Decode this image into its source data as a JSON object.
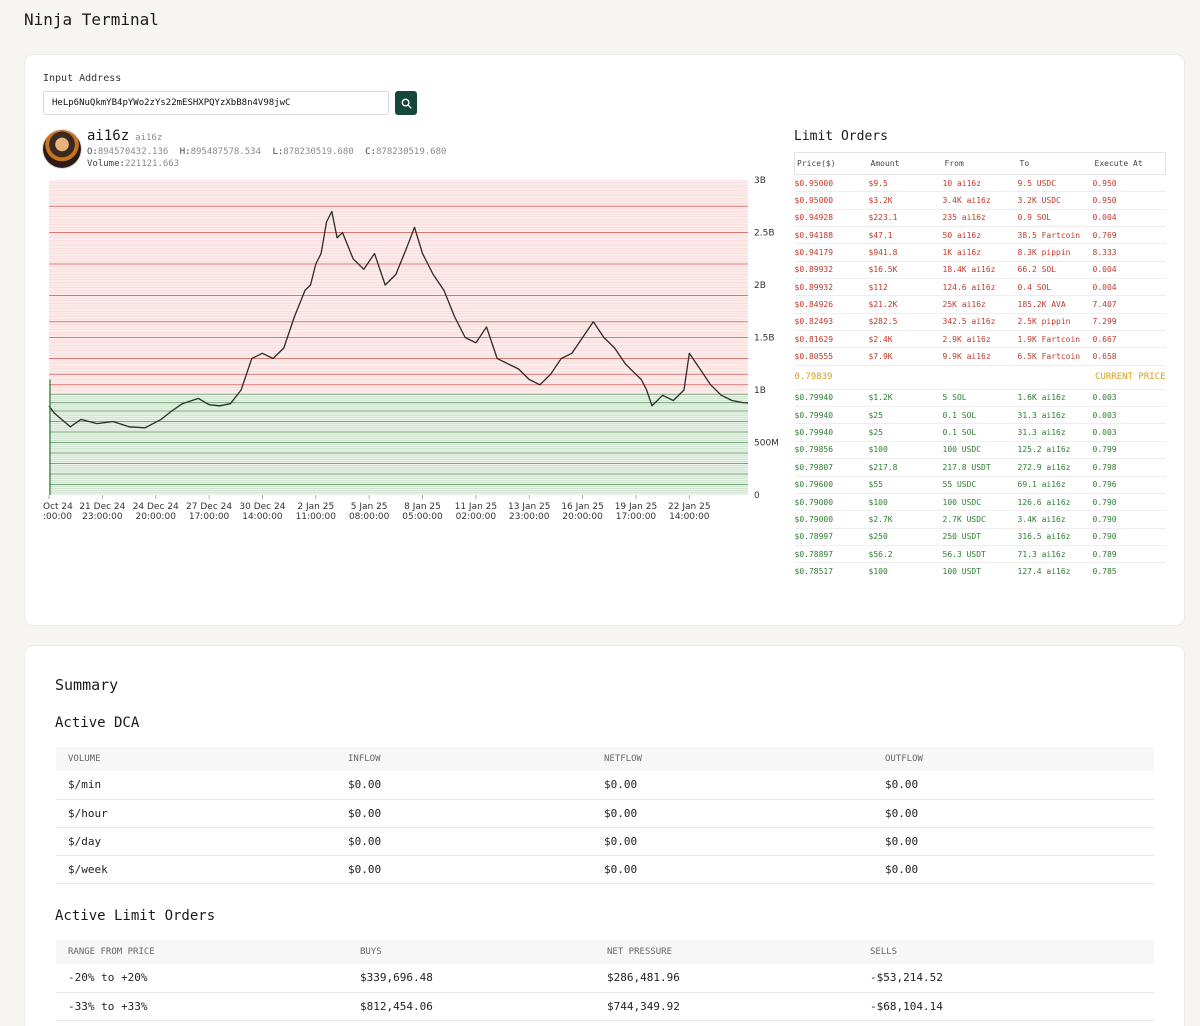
{
  "app": {
    "title": "Ninja Terminal"
  },
  "search": {
    "label": "Input Address",
    "value": "HeLp6NuQkmYB4pYWo2zYs22mESHXPQYzXbB8n4V98jwC",
    "button_icon": "search-icon"
  },
  "token": {
    "name": "ai16z",
    "ticker": "ai16z",
    "open_label": "O:",
    "open": "894570432.136",
    "high_label": "H:",
    "high": "895487578.534",
    "low_label": "L:",
    "low": "878230519.680",
    "close_label": "C:",
    "close": "878230519.680",
    "volume_label": "Volume:",
    "volume": "221121.663"
  },
  "chart_data": {
    "type": "line",
    "title": "",
    "y_ticks": [
      "3B",
      "2.5B",
      "2B",
      "1.5B",
      "1B",
      "500M",
      "0"
    ],
    "y_tick_values": [
      3000000000,
      2500000000,
      2000000000,
      1500000000,
      1000000000,
      500000000,
      0
    ],
    "ylim": [
      0,
      3000000000
    ],
    "x_tick_labels": [
      [
        "Oct 24",
        ":00:00"
      ],
      [
        "21 Dec 24",
        "23:00:00"
      ],
      [
        "24 Dec 24",
        "20:00:00"
      ],
      [
        "27 Dec 24",
        "17:00:00"
      ],
      [
        "30 Dec 24",
        "14:00:00"
      ],
      [
        "2 Jan 25",
        "11:00:00"
      ],
      [
        "5 Jan 25",
        "08:00:00"
      ],
      [
        "8 Jan 25",
        "05:00:00"
      ],
      [
        "11 Jan 25",
        "02:00:00"
      ],
      [
        "13 Jan 25",
        "23:00:00"
      ],
      [
        "16 Jan 25",
        "20:00:00"
      ],
      [
        "19 Jan 25",
        "17:00:00"
      ],
      [
        "22 Jan 25",
        "14:00:00"
      ]
    ],
    "x_tick_index": [
      0,
      1,
      2,
      3,
      4,
      5,
      6,
      7,
      8,
      9,
      10,
      11,
      12
    ],
    "x_count": 13.1,
    "price_series": [
      [
        0,
        850000000
      ],
      [
        0.1,
        780000000
      ],
      [
        0.4,
        650000000
      ],
      [
        0.6,
        720000000
      ],
      [
        0.9,
        680000000
      ],
      [
        1.2,
        700000000
      ],
      [
        1.5,
        650000000
      ],
      [
        1.8,
        640000000
      ],
      [
        2.1,
        720000000
      ],
      [
        2.3,
        800000000
      ],
      [
        2.5,
        870000000
      ],
      [
        2.8,
        920000000
      ],
      [
        3.0,
        860000000
      ],
      [
        3.2,
        850000000
      ],
      [
        3.4,
        870000000
      ],
      [
        3.6,
        1000000000
      ],
      [
        3.8,
        1300000000
      ],
      [
        4.0,
        1350000000
      ],
      [
        4.2,
        1300000000
      ],
      [
        4.4,
        1400000000
      ],
      [
        4.6,
        1700000000
      ],
      [
        4.8,
        1950000000
      ],
      [
        4.9,
        2000000000
      ],
      [
        5.0,
        2200000000
      ],
      [
        5.1,
        2300000000
      ],
      [
        5.2,
        2600000000
      ],
      [
        5.3,
        2700000000
      ],
      [
        5.4,
        2450000000
      ],
      [
        5.5,
        2500000000
      ],
      [
        5.7,
        2250000000
      ],
      [
        5.9,
        2150000000
      ],
      [
        6.1,
        2300000000
      ],
      [
        6.3,
        2000000000
      ],
      [
        6.5,
        2100000000
      ],
      [
        6.7,
        2350000000
      ],
      [
        6.85,
        2550000000
      ],
      [
        7.0,
        2300000000
      ],
      [
        7.2,
        2100000000
      ],
      [
        7.4,
        1950000000
      ],
      [
        7.6,
        1700000000
      ],
      [
        7.8,
        1500000000
      ],
      [
        8.0,
        1450000000
      ],
      [
        8.2,
        1600000000
      ],
      [
        8.4,
        1300000000
      ],
      [
        8.6,
        1250000000
      ],
      [
        8.8,
        1200000000
      ],
      [
        9.0,
        1100000000
      ],
      [
        9.2,
        1050000000
      ],
      [
        9.4,
        1150000000
      ],
      [
        9.6,
        1300000000
      ],
      [
        9.8,
        1350000000
      ],
      [
        10.0,
        1500000000
      ],
      [
        10.2,
        1650000000
      ],
      [
        10.4,
        1500000000
      ],
      [
        10.6,
        1400000000
      ],
      [
        10.8,
        1250000000
      ],
      [
        11.0,
        1150000000
      ],
      [
        11.1,
        1100000000
      ],
      [
        11.2,
        1000000000
      ],
      [
        11.3,
        850000000
      ],
      [
        11.5,
        950000000
      ],
      [
        11.7,
        900000000
      ],
      [
        11.9,
        1000000000
      ],
      [
        12.0,
        1350000000
      ],
      [
        12.2,
        1200000000
      ],
      [
        12.4,
        1050000000
      ],
      [
        12.6,
        950000000
      ],
      [
        12.8,
        900000000
      ],
      [
        13.0,
        880000000
      ],
      [
        13.1,
        878230519
      ]
    ],
    "sell_order_levels": [
      2750000000,
      2500000000,
      2200000000,
      1900000000,
      1650000000,
      1500000000,
      1300000000,
      1150000000,
      1050000000
    ],
    "buy_order_levels": [
      960000000,
      880000000,
      800000000,
      700000000,
      600000000,
      500000000,
      400000000,
      300000000,
      200000000,
      100000000
    ],
    "sell_color": "#d9463b",
    "buy_color": "#2e7d32"
  },
  "limit_orders": {
    "title": "Limit Orders",
    "headers": [
      "Price($)",
      "Amount",
      "From",
      "To",
      "Execute At"
    ],
    "sells": [
      [
        "$0.95000",
        "$9.5",
        "10 ai16z",
        "9.5 USDC",
        "0.950"
      ],
      [
        "$0.95000",
        "$3.2K",
        "3.4K ai16z",
        "3.2K USDC",
        "0.950"
      ],
      [
        "$0.94928",
        "$223.1",
        "235 ai16z",
        "0.9 SOL",
        "0.004"
      ],
      [
        "$0.94188",
        "$47.1",
        "50 ai16z",
        "38.5 Fartcoin",
        "0.769"
      ],
      [
        "$0.94179",
        "$941.8",
        "1K ai16z",
        "8.3K pippin",
        "8.333"
      ],
      [
        "$0.89932",
        "$16.5K",
        "18.4K ai16z",
        "66.2 SOL",
        "0.004"
      ],
      [
        "$0.89932",
        "$112",
        "124.6 ai16z",
        "0.4 SOL",
        "0.004"
      ],
      [
        "$0.84926",
        "$21.2K",
        "25K ai16z",
        "185.2K AVA",
        "7.407"
      ],
      [
        "$0.82493",
        "$282.5",
        "342.5 ai16z",
        "2.5K pippin",
        "7.299"
      ],
      [
        "$0.81629",
        "$2.4K",
        "2.9K ai16z",
        "1.9K Fartcoin",
        "0.667"
      ],
      [
        "$0.80555",
        "$7.9K",
        "9.9K ai16z",
        "6.5K Fartcoin",
        "0.658"
      ]
    ],
    "current_price": "0.79839",
    "current_label": "CURRENT PRICE",
    "buys": [
      [
        "$0.79940",
        "$1.2K",
        "5 SOL",
        "1.6K ai16z",
        "0.003"
      ],
      [
        "$0.79940",
        "$25",
        "0.1 SOL",
        "31.3 ai16z",
        "0.003"
      ],
      [
        "$0.79940",
        "$25",
        "0.1 SOL",
        "31.3 ai16z",
        "0.003"
      ],
      [
        "$0.79856",
        "$100",
        "100 USDC",
        "125.2 ai16z",
        "0.799"
      ],
      [
        "$0.79807",
        "$217.8",
        "217.8 USDT",
        "272.9 ai16z",
        "0.798"
      ],
      [
        "$0.79600",
        "$55",
        "55 USDC",
        "69.1 ai16z",
        "0.796"
      ],
      [
        "$0.79000",
        "$100",
        "100 USDC",
        "126.6 ai16z",
        "0.790"
      ],
      [
        "$0.79000",
        "$2.7K",
        "2.7K USDC",
        "3.4K ai16z",
        "0.790"
      ],
      [
        "$0.78997",
        "$250",
        "250 USDT",
        "316.5 ai16z",
        "0.790"
      ],
      [
        "$0.78897",
        "$56.2",
        "56.3 USDT",
        "71.3 ai16z",
        "0.789"
      ],
      [
        "$0.78517",
        "$100",
        "100 USDT",
        "127.4 ai16z",
        "0.785"
      ]
    ]
  },
  "summary": {
    "title": "Summary",
    "dca": {
      "title": "Active DCA",
      "headers": [
        "VOLUME",
        "INFLOW",
        "NETFLOW",
        "OUTFLOW"
      ],
      "rows": [
        [
          "$/min",
          "$0.00",
          "$0.00",
          "$0.00"
        ],
        [
          "$/hour",
          "$0.00",
          "$0.00",
          "$0.00"
        ],
        [
          "$/day",
          "$0.00",
          "$0.00",
          "$0.00"
        ],
        [
          "$/week",
          "$0.00",
          "$0.00",
          "$0.00"
        ]
      ]
    },
    "limit": {
      "title": "Active Limit Orders",
      "headers": [
        "RANGE FROM PRICE",
        "BUYS",
        "NET PRESSURE",
        "SELLS"
      ],
      "rows": [
        [
          "-20% to +20%",
          "$339,696.48",
          "$286,481.96",
          "-$53,214.52"
        ],
        [
          "-33% to +33%",
          "$812,454.06",
          "$744,349.92",
          "-$68,104.14"
        ]
      ]
    }
  }
}
